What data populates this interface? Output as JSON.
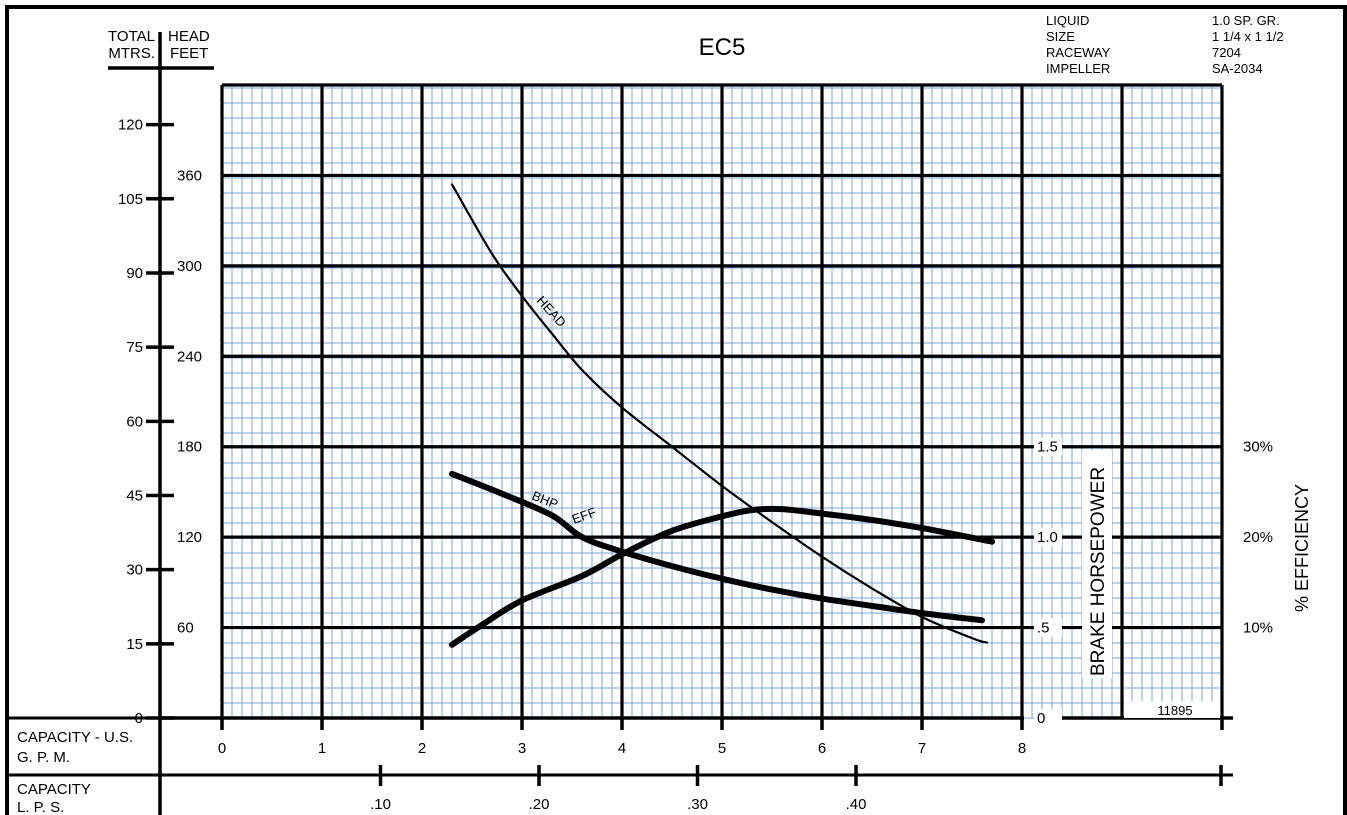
{
  "header": {
    "title": "EC5",
    "total_label": "TOTAL",
    "head_label": "HEAD",
    "mtrs_label": "MTRS.",
    "feet_label": "FEET",
    "specs": [
      {
        "label": "LIQUID",
        "value": "1.0 SP. GR."
      },
      {
        "label": "SIZE",
        "value": "1 1/4 x 1 1/2"
      },
      {
        "label": "RACEWAY",
        "value": "7204"
      },
      {
        "label": "IMPELLER",
        "value": "SA-2034"
      }
    ]
  },
  "footer": {
    "gpm_label_1": "CAPACITY - U.S.",
    "gpm_label_2": "G. P. M.",
    "lps_label_1": "CAPACITY",
    "lps_label_2": "L. P. S.",
    "curve_number": "11895"
  },
  "axes": {
    "bhp_title": "BRAKE HORSEPOWER",
    "eff_title": "% EFFICIENCY",
    "gpm_ticks": [
      "0",
      "1",
      "2",
      "3",
      "4",
      "5",
      "6",
      "7",
      "8"
    ],
    "lps_ticks": [
      ".10",
      ".20",
      ".30",
      ".40"
    ],
    "meters_ticks": [
      "0",
      "15",
      "30",
      "45",
      "60",
      "75",
      "90",
      "105",
      "120"
    ],
    "feet_ticks": [
      "60",
      "120",
      "180",
      "240",
      "300",
      "360"
    ],
    "bhp_ticks": [
      "0",
      ".5",
      "1.0",
      "1.5"
    ],
    "eff_ticks": [
      "10%",
      "20%",
      "30%"
    ]
  },
  "chart_data": {
    "type": "line",
    "title": "EC5",
    "xlabel": "CAPACITY - U.S. G. P. M.",
    "x_range": [
      0,
      8
    ],
    "y_left_label": "TOTAL HEAD (FEET)",
    "y_left_range": [
      0,
      420
    ],
    "grid": true,
    "series": [
      {
        "name": "HEAD",
        "axis": "feet",
        "x": [
          2.3,
          2.7,
          3.0,
          3.3,
          3.6,
          4.0,
          4.5,
          5.0,
          5.5,
          6.0,
          6.5,
          7.0,
          7.5,
          7.65
        ],
        "y": [
          354,
          308,
          280,
          255,
          231,
          206,
          180,
          154,
          130,
          107,
          86,
          67,
          53,
          50
        ]
      },
      {
        "name": "BHP",
        "axis": "bhp",
        "x": [
          2.3,
          2.8,
          3.3,
          3.6,
          4.0,
          4.5,
          5.0,
          5.5,
          6.0,
          6.5,
          7.0,
          7.6
        ],
        "y": [
          1.35,
          1.24,
          1.12,
          1.0,
          0.92,
          0.84,
          0.77,
          0.71,
          0.66,
          0.62,
          0.58,
          0.54
        ]
      },
      {
        "name": "EFF",
        "axis": "efficiency",
        "x": [
          2.3,
          2.6,
          3.0,
          3.6,
          4.0,
          4.5,
          5.0,
          5.3,
          5.6,
          6.0,
          6.5,
          7.0,
          7.7
        ],
        "y": [
          8.1,
          10.3,
          13.0,
          15.7,
          18.1,
          20.7,
          22.3,
          23.0,
          23.1,
          22.6,
          21.9,
          21.0,
          19.5
        ]
      }
    ],
    "secondary_axes": {
      "meters_range": [
        0,
        120
      ],
      "bhp_range": [
        0,
        1.5
      ],
      "efficiency_range": [
        0,
        30
      ],
      "lps_ticks": [
        0.1,
        0.2,
        0.3,
        0.4
      ]
    },
    "curve_labels": [
      "HEAD",
      "BHP",
      "EFF"
    ]
  }
}
